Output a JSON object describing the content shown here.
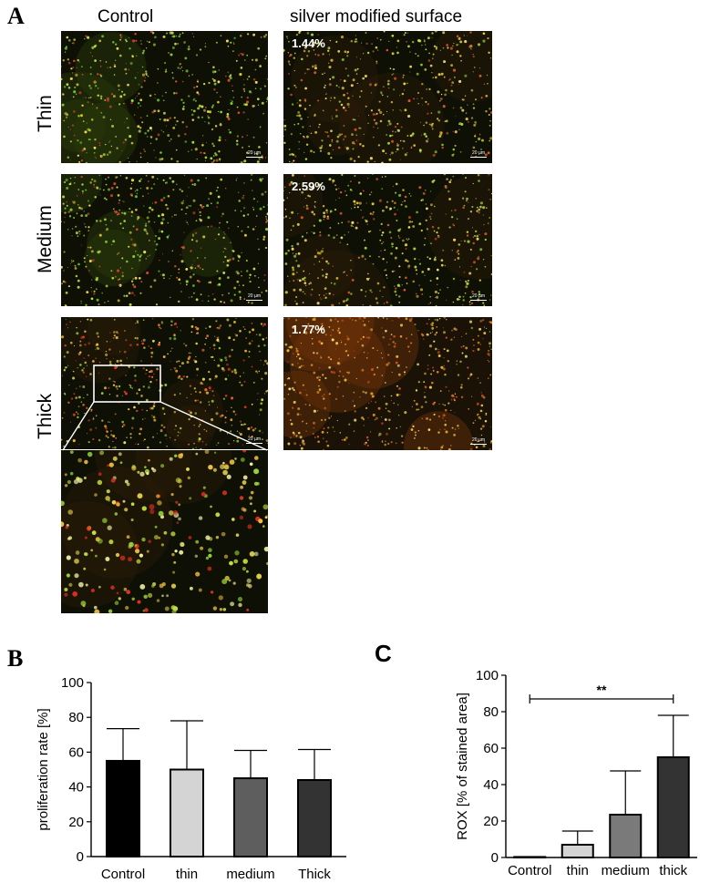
{
  "panel_a": {
    "letter": "A",
    "col_headers": [
      "Control",
      "silver modified surface"
    ],
    "row_labels": [
      "Thin",
      "Medium",
      "Thick"
    ],
    "percentages": [
      "1.44%",
      "2.59%",
      "1.77%"
    ],
    "scale_bar": "20 µm"
  },
  "panel_b": {
    "letter": "B"
  },
  "panel_c": {
    "letter": "C"
  },
  "chart_data": [
    {
      "type": "bar",
      "categories": [
        "Control",
        "thin",
        "medium",
        "Thick"
      ],
      "values": [
        55,
        50,
        45,
        44
      ],
      "errors": [
        18.5,
        28,
        16,
        17.5
      ],
      "colors": [
        "#000000",
        "#d4d4d4",
        "#5e5e5e",
        "#333333"
      ],
      "xlabel": "",
      "ylabel": "proliferation rate  [%]",
      "ylim": [
        0,
        100
      ],
      "yticks": [
        0,
        20,
        40,
        60,
        80,
        100
      ]
    },
    {
      "type": "bar",
      "categories": [
        "Control",
        "thin",
        "medium",
        "thick"
      ],
      "values": [
        0.3,
        7,
        23.5,
        55
      ],
      "errors": [
        0,
        7.5,
        24,
        23
      ],
      "colors": [
        "#ffffff",
        "#d4d4d4",
        "#7a7a7a",
        "#333333"
      ],
      "xlabel": "",
      "ylabel": "ROX [% of stained area]",
      "ylim": [
        0,
        100
      ],
      "yticks": [
        0,
        20,
        40,
        60,
        80,
        100
      ],
      "significance": {
        "label": "**",
        "from": "Control",
        "to": "thick"
      }
    }
  ]
}
